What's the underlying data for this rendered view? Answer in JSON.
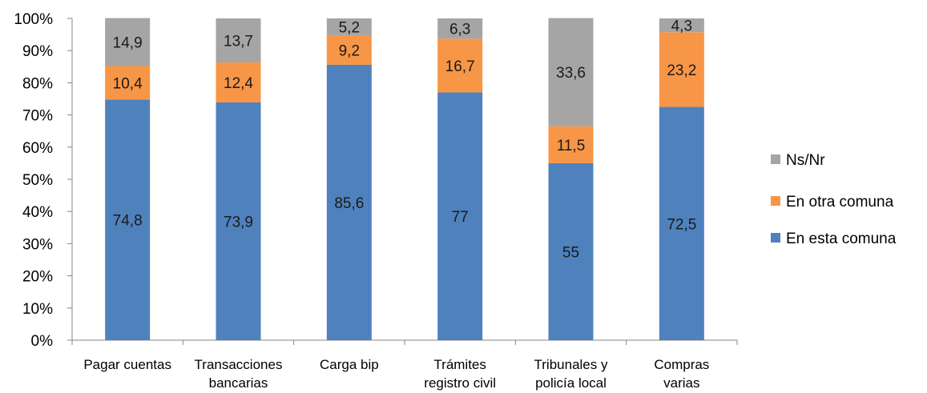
{
  "chart_data": {
    "type": "bar",
    "stacked": true,
    "percent": true,
    "title": "",
    "xlabel": "",
    "ylabel": "",
    "ylim": [
      0,
      100
    ],
    "y_ticks": [
      "0%",
      "10%",
      "20%",
      "30%",
      "40%",
      "50%",
      "60%",
      "70%",
      "80%",
      "90%",
      "100%"
    ],
    "grid": false,
    "legend_position": "right",
    "categories": [
      [
        "Pagar cuentas"
      ],
      [
        "Transacciones",
        "bancarias"
      ],
      [
        "Carga bip"
      ],
      [
        "Trámites",
        "registro civil"
      ],
      [
        "Tribunales y",
        "policía local"
      ],
      [
        "Compras",
        "varias"
      ]
    ],
    "series": [
      {
        "name": "En esta comuna",
        "color": "#4f81bd",
        "values": [
          74.8,
          73.9,
          85.6,
          77,
          55,
          72.5
        ],
        "labels": [
          "74,8",
          "73,9",
          "85,6",
          "77",
          "55",
          "72,5"
        ]
      },
      {
        "name": "En otra comuna",
        "color": "#f79646",
        "values": [
          10.4,
          12.4,
          9.2,
          16.7,
          11.5,
          23.2
        ],
        "labels": [
          "10,4",
          "12,4",
          "9,2",
          "16,7",
          "11,5",
          "23,2"
        ]
      },
      {
        "name": "Ns/Nr",
        "color": "#a5a5a5",
        "values": [
          14.9,
          13.7,
          5.2,
          6.3,
          33.6,
          4.3
        ],
        "labels": [
          "14,9",
          "13,7",
          "5,2",
          "6,3",
          "33,6",
          "4,3"
        ]
      }
    ],
    "legend_order": [
      "Ns/Nr",
      "En otra comuna",
      "En esta comuna"
    ]
  }
}
